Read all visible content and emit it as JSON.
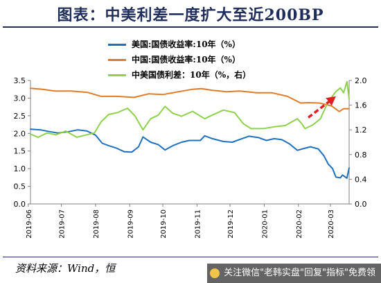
{
  "header": {
    "title": "图表：中美利差一度扩大至近200BP"
  },
  "footer": {
    "source": "资料来源：Wind，恒"
  },
  "watermark": {
    "text": "关注微信\"老韩实盘\"回复\"指标\"免费领"
  },
  "chart_data": {
    "type": "line",
    "title": "图表：中美利差一度扩大至近200BP",
    "x_start": "2019-06-03",
    "x_end": "2020-03-18",
    "x_tick_labels": [
      "2019-06",
      "2019-07",
      "2019-08",
      "2019-09",
      "2019-10",
      "2019-11",
      "2019-12",
      "2020-01",
      "2020-02",
      "2020-03"
    ],
    "y_left": {
      "range": [
        0,
        3.5
      ],
      "ticks": [
        "0.0",
        "0.5",
        "1.0",
        "1.5",
        "2.0",
        "2.5",
        "3.0",
        "3.5"
      ]
    },
    "y_right": {
      "range": [
        0,
        2.0
      ],
      "ticks": [
        "0.0",
        "0.4",
        "0.8",
        "1.2",
        "1.6",
        "2.0"
      ]
    },
    "grid": false,
    "legend_position": "top-center",
    "series": [
      {
        "name": "美国:国债收益率:10年（%）",
        "axis": "left",
        "color": "#1f6fbf",
        "points": [
          [
            "2019-06-03",
            2.12
          ],
          [
            "2019-06-12",
            2.1
          ],
          [
            "2019-06-20",
            2.05
          ],
          [
            "2019-06-28",
            2.01
          ],
          [
            "2019-07-08",
            2.05
          ],
          [
            "2019-07-16",
            2.1
          ],
          [
            "2019-07-24",
            2.07
          ],
          [
            "2019-08-01",
            1.95
          ],
          [
            "2019-08-07",
            1.72
          ],
          [
            "2019-08-13",
            1.65
          ],
          [
            "2019-08-20",
            1.58
          ],
          [
            "2019-08-27",
            1.48
          ],
          [
            "2019-09-03",
            1.47
          ],
          [
            "2019-09-09",
            1.62
          ],
          [
            "2019-09-13",
            1.9
          ],
          [
            "2019-09-20",
            1.75
          ],
          [
            "2019-09-27",
            1.68
          ],
          [
            "2019-10-03",
            1.53
          ],
          [
            "2019-10-10",
            1.65
          ],
          [
            "2019-10-18",
            1.75
          ],
          [
            "2019-10-25",
            1.8
          ],
          [
            "2019-11-04",
            1.8
          ],
          [
            "2019-11-08",
            1.93
          ],
          [
            "2019-11-15",
            1.85
          ],
          [
            "2019-11-25",
            1.77
          ],
          [
            "2019-12-03",
            1.75
          ],
          [
            "2019-12-10",
            1.83
          ],
          [
            "2019-12-18",
            1.92
          ],
          [
            "2019-12-27",
            1.88
          ],
          [
            "2020-01-03",
            1.8
          ],
          [
            "2020-01-10",
            1.85
          ],
          [
            "2020-01-17",
            1.82
          ],
          [
            "2020-01-24",
            1.7
          ],
          [
            "2020-01-31",
            1.52
          ],
          [
            "2020-02-07",
            1.58
          ],
          [
            "2020-02-12",
            1.62
          ],
          [
            "2020-02-19",
            1.56
          ],
          [
            "2020-02-24",
            1.37
          ],
          [
            "2020-02-28",
            1.13
          ],
          [
            "2020-03-03",
            1.0
          ],
          [
            "2020-03-06",
            0.76
          ],
          [
            "2020-03-10",
            0.74
          ],
          [
            "2020-03-12",
            0.82
          ],
          [
            "2020-03-16",
            0.73
          ],
          [
            "2020-03-18",
            1.02
          ]
        ]
      },
      {
        "name": "中国:国债收益率:10年（%）",
        "axis": "left",
        "color": "#e07b2a",
        "points": [
          [
            "2019-06-03",
            3.28
          ],
          [
            "2019-06-14",
            3.25
          ],
          [
            "2019-06-25",
            3.2
          ],
          [
            "2019-07-10",
            3.2
          ],
          [
            "2019-07-25",
            3.16
          ],
          [
            "2019-08-06",
            3.05
          ],
          [
            "2019-08-20",
            3.05
          ],
          [
            "2019-09-05",
            3.02
          ],
          [
            "2019-09-18",
            3.12
          ],
          [
            "2019-10-01",
            3.1
          ],
          [
            "2019-10-15",
            3.18
          ],
          [
            "2019-10-28",
            3.25
          ],
          [
            "2019-11-05",
            3.27
          ],
          [
            "2019-11-15",
            3.22
          ],
          [
            "2019-11-28",
            3.18
          ],
          [
            "2019-12-10",
            3.2
          ],
          [
            "2019-12-25",
            3.15
          ],
          [
            "2020-01-08",
            3.15
          ],
          [
            "2020-01-22",
            3.05
          ],
          [
            "2020-02-03",
            2.86
          ],
          [
            "2020-02-10",
            2.87
          ],
          [
            "2020-02-20",
            2.86
          ],
          [
            "2020-03-02",
            2.78
          ],
          [
            "2020-03-09",
            2.62
          ],
          [
            "2020-03-13",
            2.7
          ],
          [
            "2020-03-18",
            2.7
          ]
        ]
      },
      {
        "name": "中美国债利差：10年（%，右）",
        "axis": "right",
        "color": "#8ed14c",
        "points": [
          [
            "2019-06-03",
            1.13
          ],
          [
            "2019-06-10",
            1.08
          ],
          [
            "2019-06-18",
            1.15
          ],
          [
            "2019-06-26",
            1.12
          ],
          [
            "2019-07-05",
            1.18
          ],
          [
            "2019-07-15",
            1.08
          ],
          [
            "2019-07-24",
            1.12
          ],
          [
            "2019-07-31",
            1.15
          ],
          [
            "2019-08-06",
            1.33
          ],
          [
            "2019-08-13",
            1.45
          ],
          [
            "2019-08-21",
            1.48
          ],
          [
            "2019-08-30",
            1.55
          ],
          [
            "2019-09-06",
            1.42
          ],
          [
            "2019-09-13",
            1.2
          ],
          [
            "2019-09-20",
            1.38
          ],
          [
            "2019-09-27",
            1.44
          ],
          [
            "2019-10-03",
            1.58
          ],
          [
            "2019-10-10",
            1.47
          ],
          [
            "2019-10-18",
            1.42
          ],
          [
            "2019-10-28",
            1.5
          ],
          [
            "2019-11-08",
            1.38
          ],
          [
            "2019-11-15",
            1.44
          ],
          [
            "2019-11-25",
            1.52
          ],
          [
            "2019-12-05",
            1.48
          ],
          [
            "2019-12-13",
            1.3
          ],
          [
            "2019-12-20",
            1.22
          ],
          [
            "2019-12-31",
            1.22
          ],
          [
            "2020-01-10",
            1.25
          ],
          [
            "2020-01-20",
            1.27
          ],
          [
            "2020-01-31",
            1.38
          ],
          [
            "2020-02-04",
            1.3
          ],
          [
            "2020-02-07",
            1.22
          ],
          [
            "2020-02-14",
            1.28
          ],
          [
            "2020-02-21",
            1.38
          ],
          [
            "2020-02-26",
            1.58
          ],
          [
            "2020-03-03",
            1.75
          ],
          [
            "2020-03-06",
            1.82
          ],
          [
            "2020-03-10",
            1.88
          ],
          [
            "2020-03-13",
            1.8
          ],
          [
            "2020-03-16",
            1.98
          ],
          [
            "2020-03-18",
            1.7
          ]
        ]
      }
    ],
    "annotations": [
      {
        "type": "arrow",
        "color": "#e02020",
        "style": "dashed",
        "from": [
          "2020-02-10",
          2.45
        ],
        "to": [
          "2020-03-06",
          3.05
        ],
        "axis": "left"
      }
    ]
  }
}
